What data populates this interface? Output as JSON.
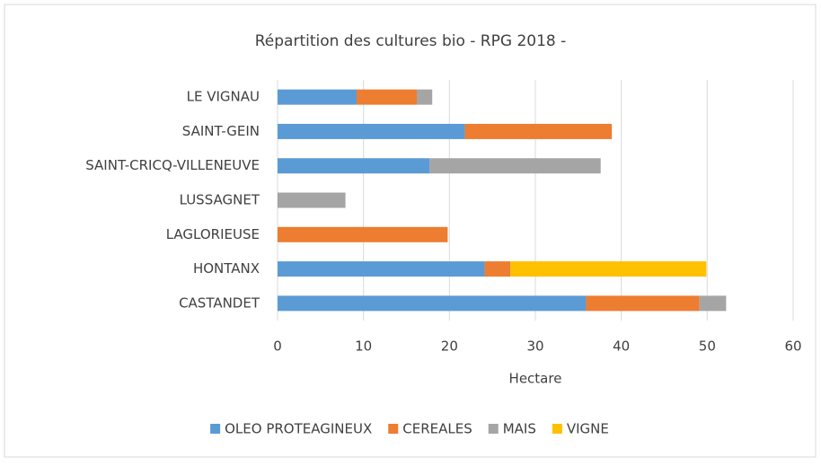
{
  "chart_data": {
    "type": "stacked_barh",
    "title": "Répartition des cultures bio - RPG 2018 -",
    "xlabel": "Hectare",
    "categories": [
      "LE VIGNAU",
      "SAINT-GEIN",
      "SAINT-CRICQ-VILLENEUVE",
      "LUSSAGNET",
      "LAGLORIEUSE",
      "HONTANX",
      "CASTANDET"
    ],
    "series": [
      {
        "name": "OLEO PROTEAGINEUX",
        "color": "#5b9bd5",
        "values": [
          9.2,
          21.8,
          17.7,
          null,
          null,
          24.1,
          35.9
        ]
      },
      {
        "name": "CEREALES",
        "color": "#ed7d31",
        "values": [
          7.0,
          17.1,
          null,
          null,
          19.8,
          3.0,
          13.2
        ]
      },
      {
        "name": "MAIS",
        "color": "#a5a5a5",
        "values": [
          1.8,
          null,
          19.9,
          7.9,
          null,
          null,
          3.1
        ]
      },
      {
        "name": "VIGNE",
        "color": "#ffc000",
        "values": [
          null,
          null,
          null,
          null,
          null,
          22.8,
          null
        ]
      }
    ],
    "xlim": [
      0,
      60
    ],
    "xticks": [
      0,
      10,
      20,
      30,
      40,
      50,
      60
    ],
    "grid": true,
    "legend": "bottom"
  }
}
